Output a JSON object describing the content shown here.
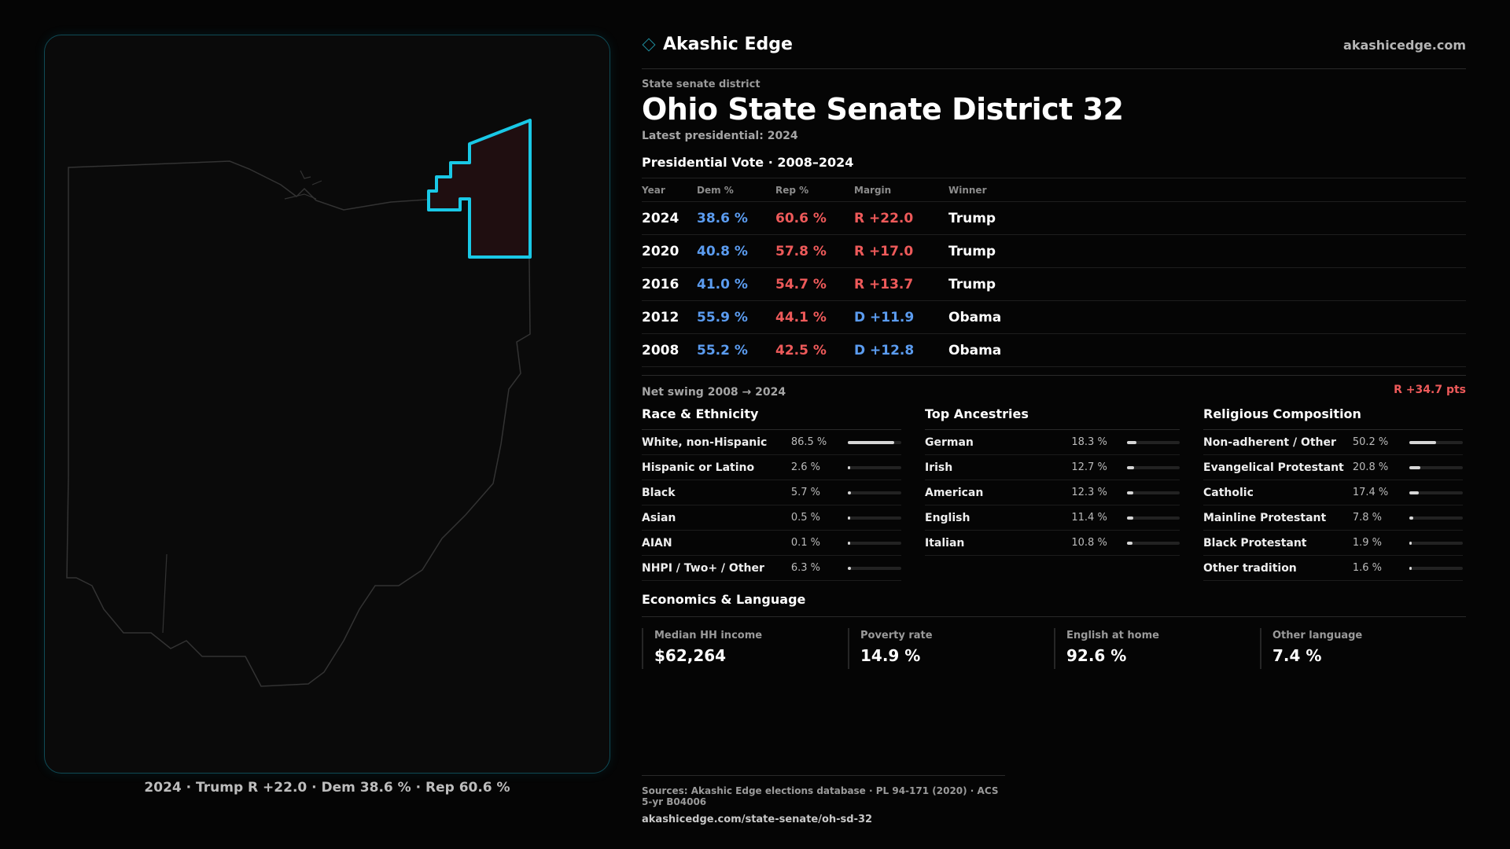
{
  "brand": {
    "name": "Akashic Edge",
    "site": "akashicedge.com"
  },
  "eyebrow": "State senate district",
  "title": "Ohio State Senate District 32",
  "latest": "Latest presidential: 2024",
  "presidential": {
    "title": "Presidential Vote · 2008–2024",
    "headers": [
      "Year",
      "Dem %",
      "Rep %",
      "Margin",
      "Winner"
    ],
    "rows": [
      {
        "year": "2024",
        "dem": "38.6 %",
        "rep": "60.6 %",
        "margin": "R +22.0",
        "winner": "Trump",
        "party": "R"
      },
      {
        "year": "2020",
        "dem": "40.8 %",
        "rep": "57.8 %",
        "margin": "R +17.0",
        "winner": "Trump",
        "party": "R"
      },
      {
        "year": "2016",
        "dem": "41.0 %",
        "rep": "54.7 %",
        "margin": "R +13.7",
        "winner": "Trump",
        "party": "R"
      },
      {
        "year": "2012",
        "dem": "55.9 %",
        "rep": "44.1 %",
        "margin": "D +11.9",
        "winner": "Obama",
        "party": "D"
      },
      {
        "year": "2008",
        "dem": "55.2 %",
        "rep": "42.5 %",
        "margin": "D +12.8",
        "winner": "Obama",
        "party": "D"
      }
    ]
  },
  "swing": {
    "label": "Net swing 2008 → 2024",
    "value": "R +34.7 pts"
  },
  "race": {
    "title": "Race & Ethnicity",
    "rows": [
      {
        "label": "White, non-Hispanic",
        "pct": "86.5 %",
        "value": 86.5
      },
      {
        "label": "Hispanic or Latino",
        "pct": "2.6 %",
        "value": 2.6
      },
      {
        "label": "Black",
        "pct": "5.7 %",
        "value": 5.7
      },
      {
        "label": "Asian",
        "pct": "0.5 %",
        "value": 0.5
      },
      {
        "label": "AIAN",
        "pct": "0.1 %",
        "value": 0.1
      },
      {
        "label": "NHPI / Two+ / Other",
        "pct": "6.3 %",
        "value": 6.3
      }
    ]
  },
  "ancestry": {
    "title": "Top Ancestries",
    "rows": [
      {
        "label": "German",
        "pct": "18.3 %",
        "value": 18.3
      },
      {
        "label": "Irish",
        "pct": "12.7 %",
        "value": 12.7
      },
      {
        "label": "American",
        "pct": "12.3 %",
        "value": 12.3
      },
      {
        "label": "English",
        "pct": "11.4 %",
        "value": 11.4
      },
      {
        "label": "Italian",
        "pct": "10.8 %",
        "value": 10.8
      }
    ]
  },
  "religion": {
    "title": "Religious Composition",
    "rows": [
      {
        "label": "Non-adherent / Other",
        "pct": "50.2 %",
        "value": 50.2
      },
      {
        "label": "Evangelical Protestant",
        "pct": "20.8 %",
        "value": 20.8
      },
      {
        "label": "Catholic",
        "pct": "17.4 %",
        "value": 17.4
      },
      {
        "label": "Mainline Protestant",
        "pct": "7.8 %",
        "value": 7.8
      },
      {
        "label": "Black Protestant",
        "pct": "1.9 %",
        "value": 1.9
      },
      {
        "label": "Other tradition",
        "pct": "1.6 %",
        "value": 1.6
      }
    ]
  },
  "economics": {
    "title": "Economics & Language",
    "items": [
      {
        "label": "Median HH income",
        "value": "$62,264"
      },
      {
        "label": "Poverty rate",
        "value": "14.9 %"
      },
      {
        "label": "English at home",
        "value": "92.6 %"
      },
      {
        "label": "Other language",
        "value": "7.4 %"
      }
    ]
  },
  "map": {
    "caption": "2024 · Trump R +22.0 · Dem 38.6 % · Rep 60.6 %",
    "colors": {
      "outline": "#3a3a3a",
      "district_stroke": "#19c8e6",
      "district_fill": "#1f0e10"
    }
  },
  "footer": {
    "sources": "Sources: Akashic Edge elections database · PL 94-171 (2020) · ACS 5-yr B04006",
    "url": "akashicedge.com/state-senate/oh-sd-32"
  },
  "colors": {
    "dem": "#5b9cf0",
    "rep": "#ee5a5a",
    "accent": "#19c8e6"
  }
}
